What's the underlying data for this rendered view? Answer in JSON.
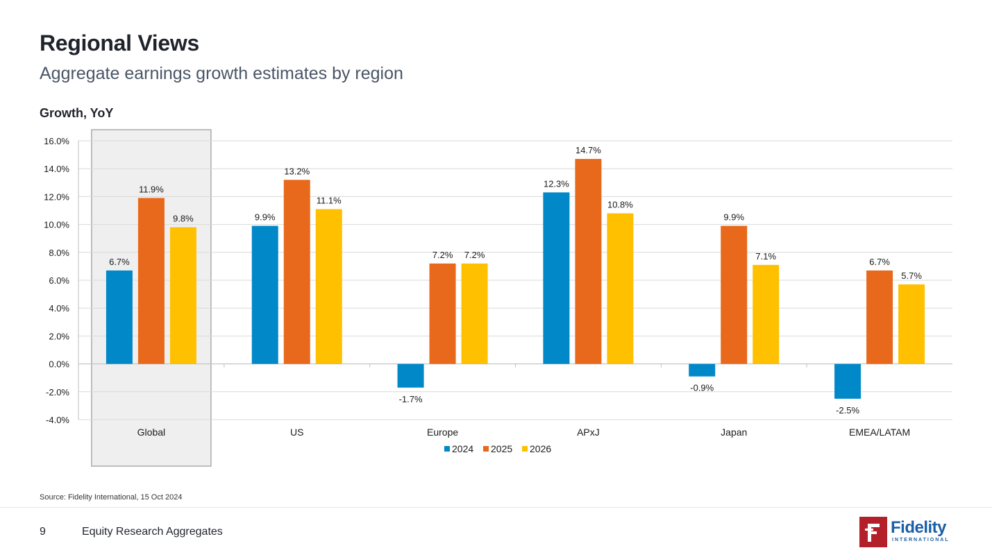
{
  "header": {
    "title": "Regional Views",
    "subtitle": "Aggregate earnings growth estimates by region"
  },
  "chart_data": {
    "type": "bar",
    "title": "",
    "ylabel": "Growth, YoY",
    "xlabel": "",
    "categories": [
      "Global",
      "US",
      "Europe",
      "APxJ",
      "Japan",
      "EMEA/LATAM"
    ],
    "series": [
      {
        "name": "2024",
        "color": "#0088c9",
        "values": [
          6.7,
          9.9,
          -1.7,
          12.3,
          -0.9,
          -2.5
        ]
      },
      {
        "name": "2025",
        "color": "#e8691b",
        "values": [
          11.9,
          13.2,
          7.2,
          14.7,
          9.9,
          6.7
        ]
      },
      {
        "name": "2026",
        "color": "#ffc000",
        "values": [
          9.8,
          11.1,
          7.2,
          10.8,
          7.1,
          5.7
        ]
      }
    ],
    "ylim": [
      -4,
      16
    ],
    "yticks": [
      16,
      14,
      12,
      10,
      8,
      6,
      4,
      2,
      0,
      -2,
      -4
    ],
    "ytick_labels": [
      "16.0%",
      "14.0%",
      "12.0%",
      "10.0%",
      "8.0%",
      "6.0%",
      "4.0%",
      "2.0%",
      "0.0%",
      "-2.0%",
      "-4.0%"
    ],
    "value_format": "percent_1dp",
    "grid": true,
    "legend": "bottom-center",
    "highlighted_category": "Global"
  },
  "footer": {
    "source": "Source: Fidelity International, 15 Oct 2024",
    "page_number": "9",
    "doc_title": "Equity Research Aggregates",
    "logo_text": "Fidelity",
    "logo_subtext": "INTERNATIONAL",
    "logo_mark": "F"
  }
}
